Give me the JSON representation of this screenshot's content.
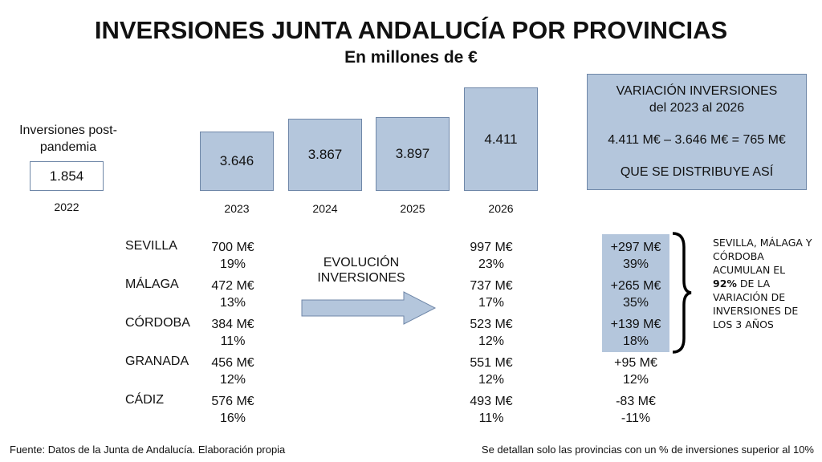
{
  "title": "INVERSIONES JUNTA ANDALUCÍA POR PROVINCIAS",
  "subtitle": "En millones de €",
  "chart_data": {
    "type": "bar",
    "title": "INVERSIONES JUNTA ANDALUCÍA POR PROVINCIAS",
    "ylabel": "millones de €",
    "reference": {
      "label": "Inversiones post-pandemia",
      "category": "2022",
      "value": 1854,
      "display": "1.854"
    },
    "categories": [
      "2023",
      "2024",
      "2025",
      "2026"
    ],
    "values": [
      3646,
      3867,
      3897,
      4411
    ],
    "display": [
      "3.646",
      "3.867",
      "3.897",
      "4.411"
    ]
  },
  "variation": {
    "line1": "VARIACIÓN INVERSIONES",
    "line2": "del 2023 al 2026",
    "formula": "4.411 M€ – 3.646 M€ = 765 M€",
    "line3": "QUE SE DISTRIBUYE ASÍ"
  },
  "evolution_label": "EVOLUCIÓN INVERSIONES",
  "provinces": [
    {
      "name": "SEVILLA",
      "v2023": "700 M€",
      "p2023": "19%",
      "v2026": "997 M€",
      "p2026": "23%",
      "diff": "+297 M€",
      "pdiff": "39%"
    },
    {
      "name": "MÁLAGA",
      "v2023": "472 M€",
      "p2023": "13%",
      "v2026": "737 M€",
      "p2026": "17%",
      "diff": "+265 M€",
      "pdiff": "35%"
    },
    {
      "name": "CÓRDOBA",
      "v2023": "384 M€",
      "p2023": "11%",
      "v2026": "523 M€",
      "p2026": "12%",
      "diff": "+139 M€",
      "pdiff": "18%"
    },
    {
      "name": "GRANADA",
      "v2023": "456 M€",
      "p2023": "12%",
      "v2026": "551 M€",
      "p2026": "12%",
      "diff": "+95 M€",
      "pdiff": "12%"
    },
    {
      "name": "CÁDIZ",
      "v2023": "576 M€",
      "p2023": "16%",
      "v2026": "493 M€",
      "p2026": "11%",
      "diff": "-83 M€",
      "pdiff": "-11%"
    }
  ],
  "note": {
    "pre": "SEVILLA, MÁLAGA Y CÓRDOBA ACUMULAN EL",
    "bold": "92%",
    "post": "DE LA VARIACIÓN DE INVERSIONES DE LOS 3 AÑOS"
  },
  "footer_left": "Fuente: Datos de la Junta de Andalucía. Elaboración propia",
  "footer_right": "Se detallan solo las provincias con un % de inversiones superior al 10%",
  "colors": {
    "bar": "#b4c6dc",
    "border": "#6f87a8"
  }
}
